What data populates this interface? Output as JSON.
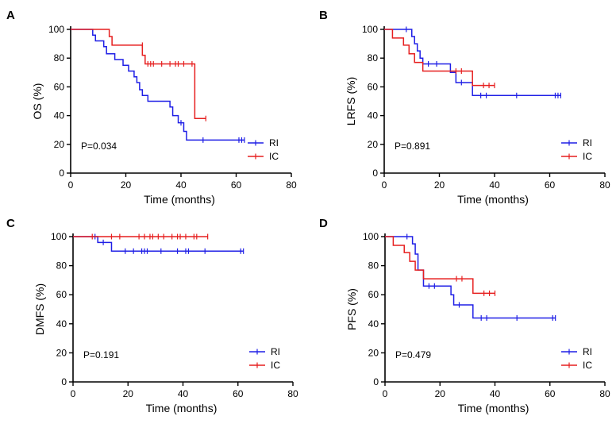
{
  "colors": {
    "RI": "#1f1fe6",
    "IC": "#e61f1f",
    "axis": "#000000"
  },
  "chart_data": [
    {
      "type": "line",
      "panel": "A",
      "xlabel": "Time (months)",
      "ylabel": "OS (%)",
      "xlim": [
        0,
        80
      ],
      "ylim": [
        0,
        100
      ],
      "xticks": [
        0,
        20,
        40,
        60,
        80
      ],
      "yticks": [
        0,
        20,
        40,
        60,
        80,
        100
      ],
      "pvalue": "P=0.034",
      "legend_position": "lower-right",
      "series": [
        {
          "name": "RI",
          "color": "#1f1fe6",
          "steps": [
            [
              0,
              100
            ],
            [
              8,
              96
            ],
            [
              9,
              92
            ],
            [
              12,
              88
            ],
            [
              13,
              83
            ],
            [
              16,
              79
            ],
            [
              19,
              75
            ],
            [
              21,
              71
            ],
            [
              23,
              67
            ],
            [
              24,
              63
            ],
            [
              25,
              58
            ],
            [
              26,
              54
            ],
            [
              28,
              50
            ],
            [
              36,
              46
            ],
            [
              37,
              40
            ],
            [
              39,
              35
            ],
            [
              41,
              29
            ],
            [
              42,
              23
            ]
          ],
          "end": 63,
          "censored": [
            [
              40,
              35
            ],
            [
              48,
              23
            ],
            [
              61,
              23
            ],
            [
              62,
              23
            ],
            [
              63,
              23
            ]
          ]
        },
        {
          "name": "IC",
          "color": "#e61f1f",
          "steps": [
            [
              0,
              100
            ],
            [
              14,
              95
            ],
            [
              15,
              89
            ],
            [
              26,
              82
            ],
            [
              27,
              76
            ],
            [
              45,
              38
            ]
          ],
          "end": 49,
          "censored": [
            [
              26,
              89
            ],
            [
              28,
              76
            ],
            [
              29,
              76
            ],
            [
              30,
              76
            ],
            [
              33,
              76
            ],
            [
              36,
              76
            ],
            [
              38,
              76
            ],
            [
              39,
              76
            ],
            [
              41,
              76
            ],
            [
              44,
              76
            ],
            [
              49,
              38
            ]
          ]
        }
      ]
    },
    {
      "type": "line",
      "panel": "B",
      "xlabel": "Time (months)",
      "ylabel": "LRFS (%)",
      "xlim": [
        0,
        80
      ],
      "ylim": [
        0,
        100
      ],
      "xticks": [
        0,
        20,
        40,
        60,
        80
      ],
      "yticks": [
        0,
        20,
        40,
        60,
        80,
        100
      ],
      "pvalue": "P=0.891",
      "legend_position": "lower-right",
      "series": [
        {
          "name": "RI",
          "color": "#1f1fe6",
          "steps": [
            [
              0,
              100
            ],
            [
              10,
              95
            ],
            [
              11,
              90
            ],
            [
              12,
              85
            ],
            [
              13,
              80
            ],
            [
              14,
              76
            ],
            [
              24,
              70
            ],
            [
              26,
              63
            ],
            [
              32,
              54
            ]
          ],
          "end": 64,
          "censored": [
            [
              8,
              100
            ],
            [
              16,
              76
            ],
            [
              19,
              76
            ],
            [
              28,
              63
            ],
            [
              35,
              54
            ],
            [
              37,
              54
            ],
            [
              48,
              54
            ],
            [
              62,
              54
            ],
            [
              63,
              54
            ],
            [
              64,
              54
            ]
          ]
        },
        {
          "name": "IC",
          "color": "#e61f1f",
          "steps": [
            [
              0,
              100
            ],
            [
              3,
              94
            ],
            [
              7,
              89
            ],
            [
              9,
              83
            ],
            [
              11,
              77
            ],
            [
              14,
              71
            ],
            [
              32,
              61
            ]
          ],
          "end": 40,
          "censored": [
            [
              26,
              71
            ],
            [
              28,
              71
            ],
            [
              36,
              61
            ],
            [
              38,
              61
            ],
            [
              40,
              61
            ]
          ]
        }
      ]
    },
    {
      "type": "line",
      "panel": "C",
      "xlabel": "Time (months)",
      "ylabel": "DMFS (%)",
      "xlim": [
        0,
        80
      ],
      "ylim": [
        0,
        100
      ],
      "xticks": [
        0,
        20,
        40,
        60,
        80
      ],
      "yticks": [
        0,
        20,
        40,
        60,
        80,
        100
      ],
      "pvalue": "P=0.191",
      "legend_position": "lower-right",
      "series": [
        {
          "name": "RI",
          "color": "#1f1fe6",
          "steps": [
            [
              0,
              100
            ],
            [
              9,
              96
            ],
            [
              14,
              90
            ]
          ],
          "end": 62,
          "censored": [
            [
              8,
              100
            ],
            [
              11,
              96
            ],
            [
              19,
              90
            ],
            [
              22,
              90
            ],
            [
              25,
              90
            ],
            [
              26,
              90
            ],
            [
              27,
              90
            ],
            [
              32,
              90
            ],
            [
              38,
              90
            ],
            [
              41,
              90
            ],
            [
              42,
              90
            ],
            [
              48,
              90
            ],
            [
              61,
              90
            ],
            [
              62,
              90
            ]
          ]
        },
        {
          "name": "IC",
          "color": "#e61f1f",
          "steps": [
            [
              0,
              100
            ]
          ],
          "end": 49,
          "censored": [
            [
              7,
              100
            ],
            [
              14,
              100
            ],
            [
              17,
              100
            ],
            [
              24,
              100
            ],
            [
              26,
              100
            ],
            [
              28,
              100
            ],
            [
              29,
              100
            ],
            [
              31,
              100
            ],
            [
              33,
              100
            ],
            [
              36,
              100
            ],
            [
              38,
              100
            ],
            [
              39,
              100
            ],
            [
              41,
              100
            ],
            [
              44,
              100
            ],
            [
              45,
              100
            ],
            [
              49,
              100
            ]
          ]
        }
      ]
    },
    {
      "type": "line",
      "panel": "D",
      "xlabel": "Time (months)",
      "ylabel": "PFS (%)",
      "xlim": [
        0,
        80
      ],
      "ylim": [
        0,
        100
      ],
      "xticks": [
        0,
        20,
        40,
        60,
        80
      ],
      "yticks": [
        0,
        20,
        40,
        60,
        80,
        100
      ],
      "pvalue": "P=0.479",
      "legend_position": "lower-right",
      "series": [
        {
          "name": "RI",
          "color": "#1f1fe6",
          "steps": [
            [
              0,
              100
            ],
            [
              10,
              95
            ],
            [
              11,
              88
            ],
            [
              12,
              77
            ],
            [
              14,
              66
            ],
            [
              24,
              60
            ],
            [
              25,
              53
            ],
            [
              32,
              44
            ]
          ],
          "end": 62,
          "censored": [
            [
              8,
              100
            ],
            [
              16,
              66
            ],
            [
              18,
              66
            ],
            [
              27,
              53
            ],
            [
              35,
              44
            ],
            [
              37,
              44
            ],
            [
              48,
              44
            ],
            [
              61,
              44
            ],
            [
              62,
              44
            ]
          ]
        },
        {
          "name": "IC",
          "color": "#e61f1f",
          "steps": [
            [
              0,
              100
            ],
            [
              3,
              94
            ],
            [
              7,
              89
            ],
            [
              9,
              83
            ],
            [
              11,
              77
            ],
            [
              14,
              71
            ],
            [
              32,
              61
            ]
          ],
          "end": 40,
          "censored": [
            [
              26,
              71
            ],
            [
              28,
              71
            ],
            [
              36,
              61
            ],
            [
              38,
              61
            ],
            [
              40,
              61
            ]
          ]
        }
      ]
    }
  ]
}
